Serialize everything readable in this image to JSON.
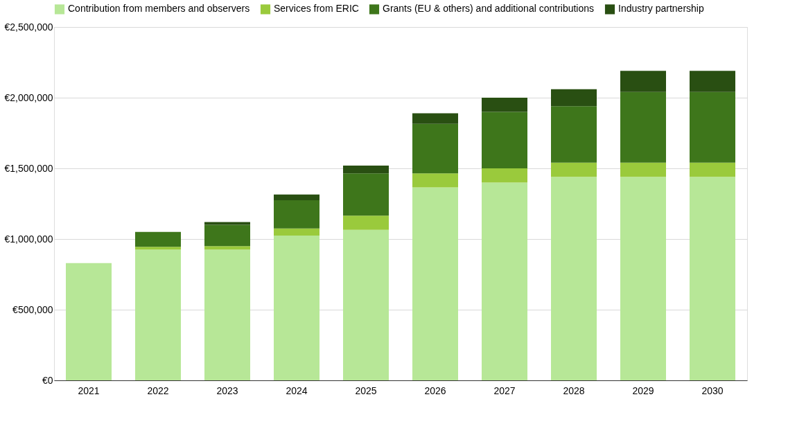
{
  "chart_data": {
    "type": "bar",
    "stacked": true,
    "categories": [
      "2021",
      "2022",
      "2023",
      "2024",
      "2025",
      "2026",
      "2027",
      "2028",
      "2029",
      "2030"
    ],
    "series": [
      {
        "name": "Contribution from members and observers",
        "color": "#b7e797",
        "values": [
          830000,
          925000,
          925000,
          1025000,
          1065000,
          1365000,
          1400000,
          1440000,
          1440000,
          1440000
        ]
      },
      {
        "name": "Services from ERIC",
        "color": "#9aca3c",
        "values": [
          0,
          20000,
          25000,
          50000,
          100000,
          100000,
          100000,
          100000,
          100000,
          100000
        ]
      },
      {
        "name": "Grants (EU & others) and additional contributions",
        "color": "#3e761b",
        "values": [
          0,
          105000,
          150000,
          200000,
          300000,
          350000,
          400000,
          400000,
          500000,
          500000
        ]
      },
      {
        "name": "Industry partnership",
        "color": "#294f12",
        "values": [
          0,
          0,
          20000,
          40000,
          55000,
          75000,
          100000,
          120000,
          150000,
          150000
        ]
      }
    ],
    "ylim": [
      0,
      2500000
    ],
    "yticks": [
      {
        "value": 0,
        "label": "€0"
      },
      {
        "value": 500000,
        "label": "€500,000"
      },
      {
        "value": 1000000,
        "label": "€1,000,000"
      },
      {
        "value": 1500000,
        "label": "€1,500,000"
      },
      {
        "value": 2000000,
        "label": "€2,000,000"
      },
      {
        "value": 2500000,
        "label": "€2,500,000"
      }
    ],
    "grid": "y",
    "legend": "top"
  }
}
